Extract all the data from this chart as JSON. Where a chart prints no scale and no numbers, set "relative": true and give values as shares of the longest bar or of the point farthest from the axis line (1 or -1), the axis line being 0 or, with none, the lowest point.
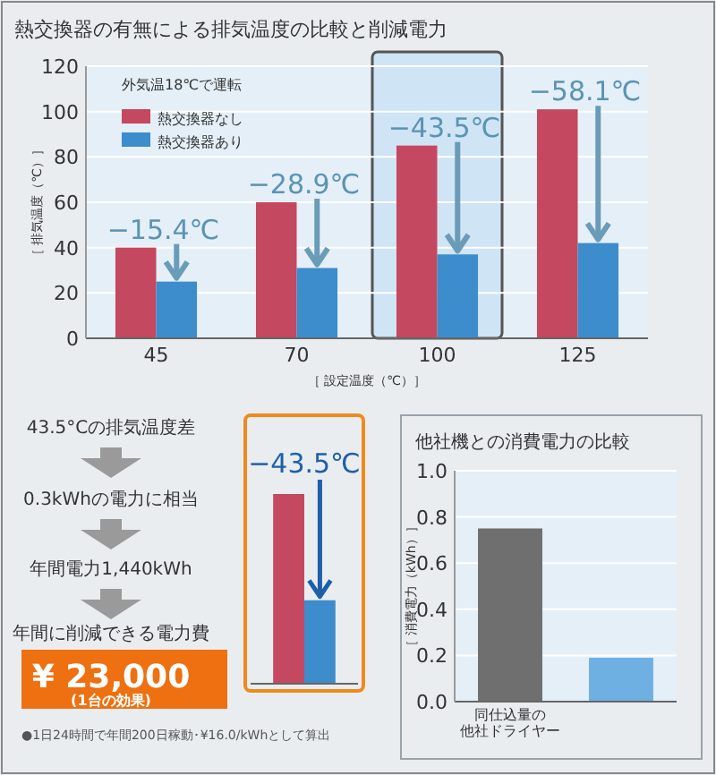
{
  "chart_data": [
    {
      "type": "bar",
      "title": "熱交換器の有無による排気温度の比較と削減電力",
      "subtitle": "外気温18℃で運転",
      "xlabel": "［ 設定温度（℃）］",
      "ylabel": "［ 排気温度（℃）］",
      "categories": [
        "45",
        "70",
        "100",
        "125"
      ],
      "series": [
        {
          "name": "熱交換器なし",
          "color": "#c4485f",
          "values": [
            40,
            60,
            85,
            101
          ]
        },
        {
          "name": "熱交換器あり",
          "color": "#3d8ccc",
          "values": [
            25,
            31,
            37,
            42
          ]
        }
      ],
      "ylim": [
        0,
        120
      ],
      "yticks": [
        0,
        20,
        40,
        60,
        80,
        100,
        120
      ],
      "grid": "y",
      "legend": "top left",
      "bands": [
        {
          "axis": "x",
          "from": "100",
          "to": "100",
          "color": "#cfe4f4"
        }
      ],
      "annotations": [
        {
          "text": "−15.4℃",
          "x": "45",
          "y": 40
        },
        {
          "text": "−28.9℃",
          "x": "70",
          "y": 60
        },
        {
          "text": "−43.5℃",
          "x": "100",
          "y": 85
        },
        {
          "text": "−58.1℃",
          "x": "125",
          "y": 101
        }
      ]
    },
    {
      "type": "other",
      "annotations": [
        "43.5°Cの排気温度差",
        "0.3kWhの電力に相当",
        "年間電力1,440kWh",
        "年間に削減できる電力費",
        "¥ 23,000",
        "(1台の効果)",
        "●1日24時間で年間200日稼動･¥16.0/kWhとして算出"
      ]
    },
    {
      "type": "bar",
      "relative": true,
      "categories": [
        null
      ],
      "series": [
        {
          "color": "#c4485f",
          "values": [
            1
          ]
        },
        {
          "color": "#3d8ccc",
          "values": [
            0.44
          ]
        }
      ],
      "annotations": [
        "−43.5℃"
      ]
    },
    {
      "type": "bar",
      "title": "他社機との消費電力の比較",
      "ylabel": "［ 消費電力（kWh）］",
      "categories": [
        "同仕込量の他社ドライヤー",
        null
      ],
      "values": [
        0.75,
        0.19
      ],
      "colors": [
        "#6f6f6f",
        "#6fb0e3"
      ],
      "ylim": [
        0,
        1
      ],
      "yticks": [
        {
          "value": 0,
          "label": "0.0"
        },
        {
          "value": 0.2,
          "label": "0.2"
        },
        {
          "value": 0.4,
          "label": "0.4"
        },
        {
          "value": 0.6,
          "label": "0.6"
        },
        {
          "value": 0.8,
          "label": "0.8"
        },
        {
          "value": 1,
          "label": "1.0"
        }
      ],
      "grid": "y"
    }
  ]
}
